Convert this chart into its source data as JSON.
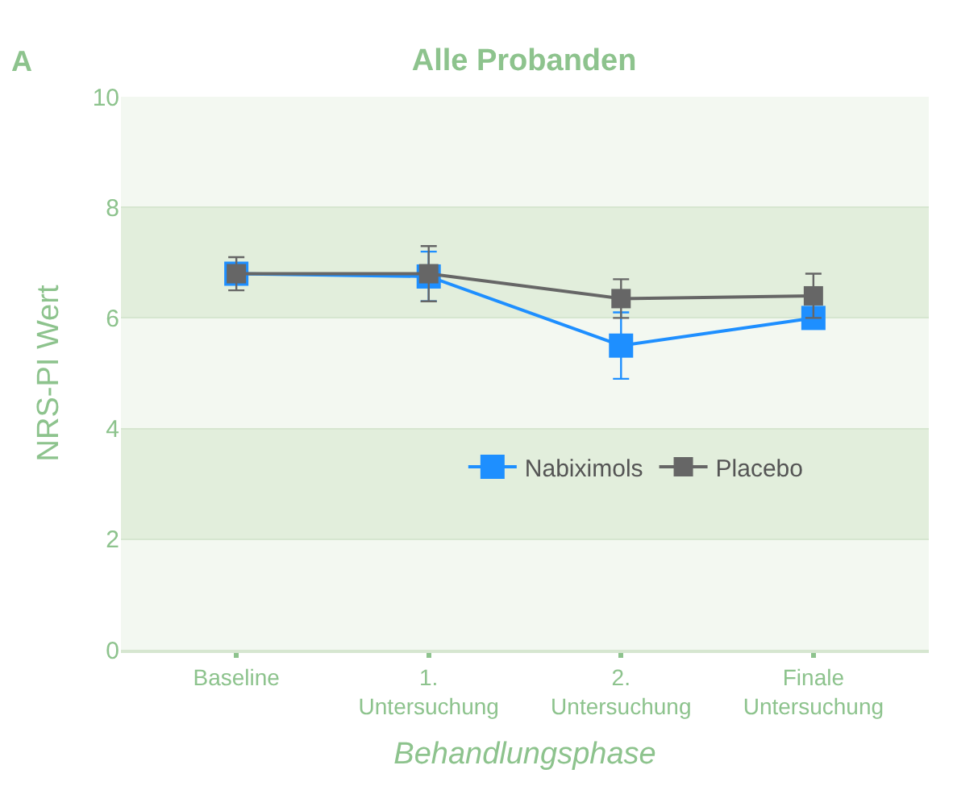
{
  "chart_data": {
    "type": "line",
    "title": "Alle Probanden",
    "xlabel": "Behandlungsphase",
    "ylabel": "NRS-PI Wert",
    "annotations": [
      "A"
    ],
    "categories": [
      "Baseline",
      "1.\nUntersuchung",
      "2.\nUntersuchung",
      "Finale\nUntersuchung"
    ],
    "series": [
      {
        "name": "Nabiximols",
        "color": "#1e8fff",
        "values": [
          6.8,
          6.75,
          5.5,
          6.0
        ],
        "errors": [
          null,
          0.45,
          0.6,
          null
        ]
      },
      {
        "name": "Placebo",
        "color": "#666666",
        "values": [
          6.8,
          6.8,
          6.35,
          6.4
        ],
        "errors": [
          0.3,
          0.5,
          0.35,
          0.4
        ]
      }
    ],
    "ylim": [
      0,
      10
    ],
    "yticks": [
      0,
      2,
      4,
      6,
      8,
      10
    ],
    "bands": [
      {
        "axis": "y",
        "from": 2,
        "to": 4,
        "color": "#e2eedc"
      },
      {
        "axis": "y",
        "from": 6,
        "to": 8,
        "color": "#e2eedc"
      }
    ],
    "grid": "y",
    "legend": "right",
    "marker": "square",
    "line_style": "solid"
  }
}
